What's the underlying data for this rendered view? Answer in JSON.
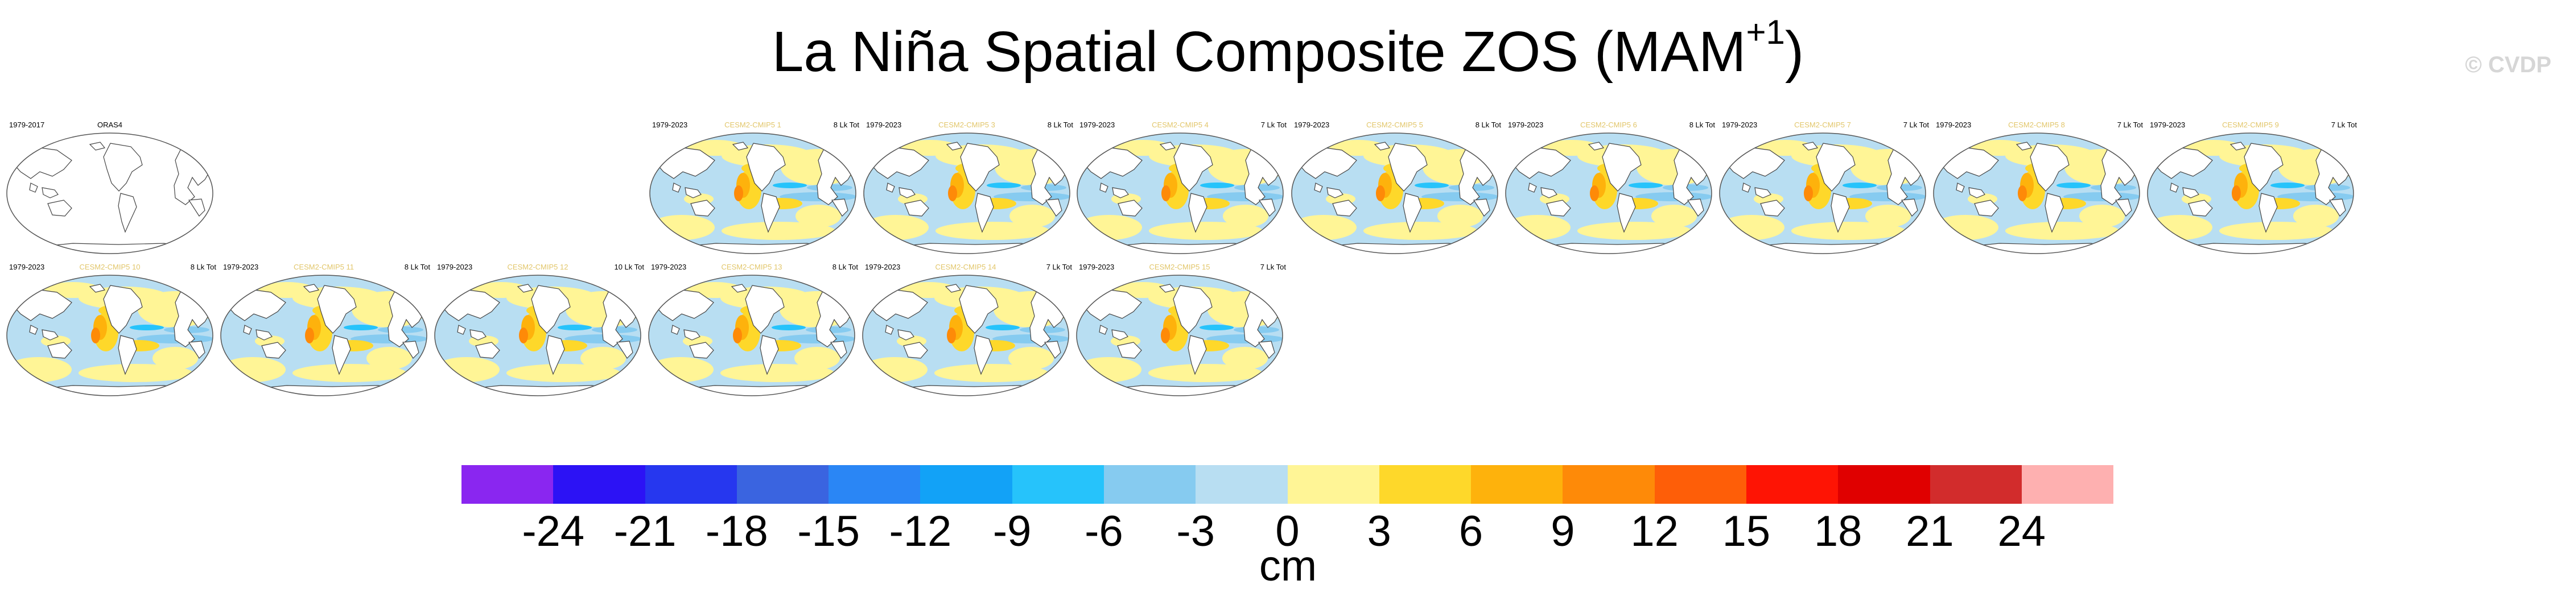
{
  "title": {
    "text": "La Niña Spatial Composite ZOS (MAM",
    "sup": "+1",
    "close": ")"
  },
  "watermark": "© CVDP",
  "chart_data": {
    "type": "heatmap",
    "title": "La Niña Spatial Composite ZOS (MAM+1)",
    "variable": "ZOS",
    "season": "MAM+1",
    "projection": "global map",
    "panels": [
      {
        "left": "1979-2017",
        "center": "ORAS4",
        "right": "",
        "observational": true
      },
      {
        "left": "1979-2023",
        "center": "CESM2-CMIP5 1",
        "right": "8 Lk Tot"
      },
      {
        "left": "1979-2023",
        "center": "CESM2-CMIP5 3",
        "right": "8 Lk Tot"
      },
      {
        "left": "1979-2023",
        "center": "CESM2-CMIP5 4",
        "right": "7 Lk Tot"
      },
      {
        "left": "1979-2023",
        "center": "CESM2-CMIP5 5",
        "right": "8 Lk Tot"
      },
      {
        "left": "1979-2023",
        "center": "CESM2-CMIP5 6",
        "right": "8 Lk Tot"
      },
      {
        "left": "1979-2023",
        "center": "CESM2-CMIP5 7",
        "right": "7 Lk Tot"
      },
      {
        "left": "1979-2023",
        "center": "CESM2-CMIP5 8",
        "right": "7 Lk Tot"
      },
      {
        "left": "1979-2023",
        "center": "CESM2-CMIP5 9",
        "right": "7 Lk Tot"
      },
      {
        "left": "1979-2023",
        "center": "CESM2-CMIP5 10",
        "right": "8 Lk Tot"
      },
      {
        "left": "1979-2023",
        "center": "CESM2-CMIP5 11",
        "right": "8 Lk Tot"
      },
      {
        "left": "1979-2023",
        "center": "CESM2-CMIP5 12",
        "right": "10 Lk Tot"
      },
      {
        "left": "1979-2023",
        "center": "CESM2-CMIP5 13",
        "right": "8 Lk Tot"
      },
      {
        "left": "1979-2023",
        "center": "CESM2-CMIP5 14",
        "right": "7 Lk Tot"
      },
      {
        "left": "1979-2023",
        "center": "CESM2-CMIP5 15",
        "right": "7 Lk Tot"
      }
    ],
    "colorbar": {
      "units": "cm",
      "ticks": [
        -24,
        -21,
        -18,
        -15,
        -12,
        -9,
        -6,
        -3,
        0,
        3,
        6,
        9,
        12,
        15,
        18,
        21,
        24
      ],
      "colors": [
        "#8a26f0",
        "#2c12f5",
        "#2637ef",
        "#3a64e0",
        "#2a86f5",
        "#12a2f7",
        "#26c3fb",
        "#86cbf0",
        "#b8def2",
        "#fff596",
        "#fed82a",
        "#feb20c",
        "#fe8a08",
        "#fe5e08",
        "#fe1404",
        "#e00000",
        "#d22c2c",
        "#feb0b0"
      ]
    }
  }
}
